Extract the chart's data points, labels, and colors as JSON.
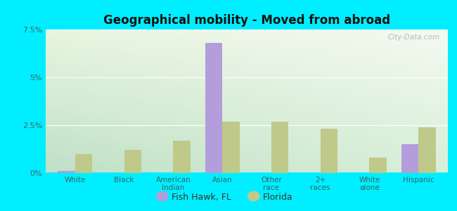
{
  "title": "Geographical mobility - Moved from abroad",
  "categories": [
    "White",
    "Black",
    "American\nIndian",
    "Asian",
    "Other\nrace",
    "2+\nraces",
    "White\nalone",
    "Hispanic"
  ],
  "fish_hawk_values": [
    0.1,
    0.0,
    0.0,
    6.8,
    0.0,
    0.0,
    0.0,
    1.5
  ],
  "florida_values": [
    1.0,
    1.2,
    1.7,
    2.7,
    2.7,
    2.3,
    0.8,
    2.4
  ],
  "fish_hawk_color": "#b39ddb",
  "florida_color": "#bfc98a",
  "background_outer": "#00eeff",
  "ylim": [
    0,
    7.5
  ],
  "yticks": [
    0,
    2.5,
    5.0,
    7.5
  ],
  "ytick_labels": [
    "0%",
    "2.5%",
    "5%",
    "7.5%"
  ],
  "legend_fish_hawk": "Fish Hawk, FL",
  "legend_florida": "Florida",
  "bar_width": 0.35,
  "watermark": "City-Data.com"
}
